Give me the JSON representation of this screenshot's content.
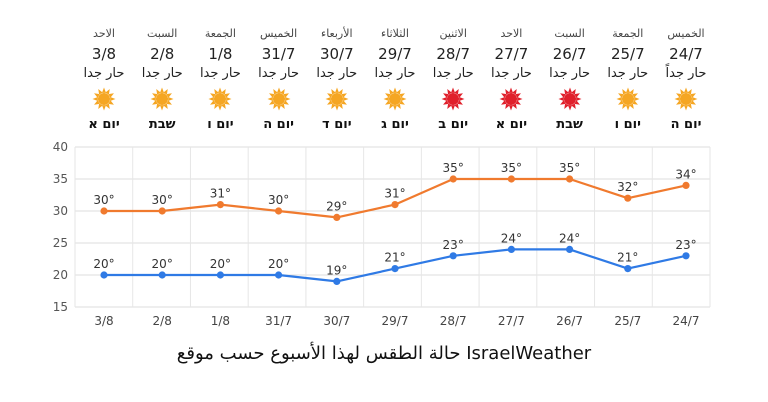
{
  "days": [
    {
      "date": "3/8",
      "name": "الاحد",
      "condition": "حار جدا",
      "icon": "sun-icon",
      "icon_color": "#f5a623",
      "hebrew": "יום א"
    },
    {
      "date": "2/8",
      "name": "السبت",
      "condition": "حار جدا",
      "icon": "sun-icon",
      "icon_color": "#f5a623",
      "hebrew": "שבת"
    },
    {
      "date": "1/8",
      "name": "الجمعة",
      "condition": "حار جدا",
      "icon": "sun-icon",
      "icon_color": "#f5a623",
      "hebrew": "יום ו"
    },
    {
      "date": "31/7",
      "name": "الخميس",
      "condition": "حار جدا",
      "icon": "sun-icon",
      "icon_color": "#f5a623",
      "hebrew": "יום ה"
    },
    {
      "date": "30/7",
      "name": "الأربعاء",
      "condition": "حار جدا",
      "icon": "sun-icon",
      "icon_color": "#f5a623",
      "hebrew": "יום ד"
    },
    {
      "date": "29/7",
      "name": "الثلاثاء",
      "condition": "حار جدا",
      "icon": "sun-icon",
      "icon_color": "#f5a623",
      "hebrew": "יום ג"
    },
    {
      "date": "28/7",
      "name": "الاثنين",
      "condition": "حار جدا",
      "icon": "sun-icon",
      "icon_color": "#e0202b",
      "hebrew": "יום ב"
    },
    {
      "date": "27/7",
      "name": "الاحد",
      "condition": "حار جدا",
      "icon": "sun-icon",
      "icon_color": "#e0202b",
      "hebrew": "יום א"
    },
    {
      "date": "26/7",
      "name": "السبت",
      "condition": "حار جدا",
      "icon": "sun-icon",
      "icon_color": "#e0202b",
      "hebrew": "שבת"
    },
    {
      "date": "25/7",
      "name": "الجمعة",
      "condition": "حار جدا",
      "icon": "sun-icon",
      "icon_color": "#f5a623",
      "hebrew": "יום ו"
    },
    {
      "date": "24/7",
      "name": "الخميس",
      "condition": "حار جداً",
      "icon": "sun-icon",
      "icon_color": "#f5a623",
      "hebrew": "יום ה"
    }
  ],
  "chart_data": {
    "type": "line",
    "categories": [
      "3/8",
      "2/8",
      "1/8",
      "31/7",
      "30/7",
      "29/7",
      "28/7",
      "27/7",
      "26/7",
      "25/7",
      "24/7"
    ],
    "series": [
      {
        "values": [
          30,
          30,
          31,
          30,
          29,
          31,
          35,
          35,
          35,
          32,
          34
        ],
        "color": "#f07a2e",
        "labels": [
          "30°",
          "30°",
          "31°",
          "30°",
          "29°",
          "31°",
          "35°",
          "35°",
          "35°",
          "32°",
          "34°"
        ]
      },
      {
        "values": [
          20,
          20,
          20,
          20,
          19,
          21,
          23,
          24,
          24,
          21,
          23
        ],
        "color": "#2f7ae5",
        "labels": [
          "20°",
          "20°",
          "20°",
          "20°",
          "19°",
          "21°",
          "23°",
          "24°",
          "24°",
          "21°",
          "23°"
        ]
      }
    ],
    "ylim": [
      15,
      40
    ],
    "yticks": [
      "15",
      "20",
      "25",
      "30",
      "35",
      "40"
    ],
    "grid": true,
    "title": "",
    "xlabel": "",
    "ylabel": ""
  },
  "caption": "حالة الطقس لهذا الأسبوع حسب موقع IsraelWeather"
}
